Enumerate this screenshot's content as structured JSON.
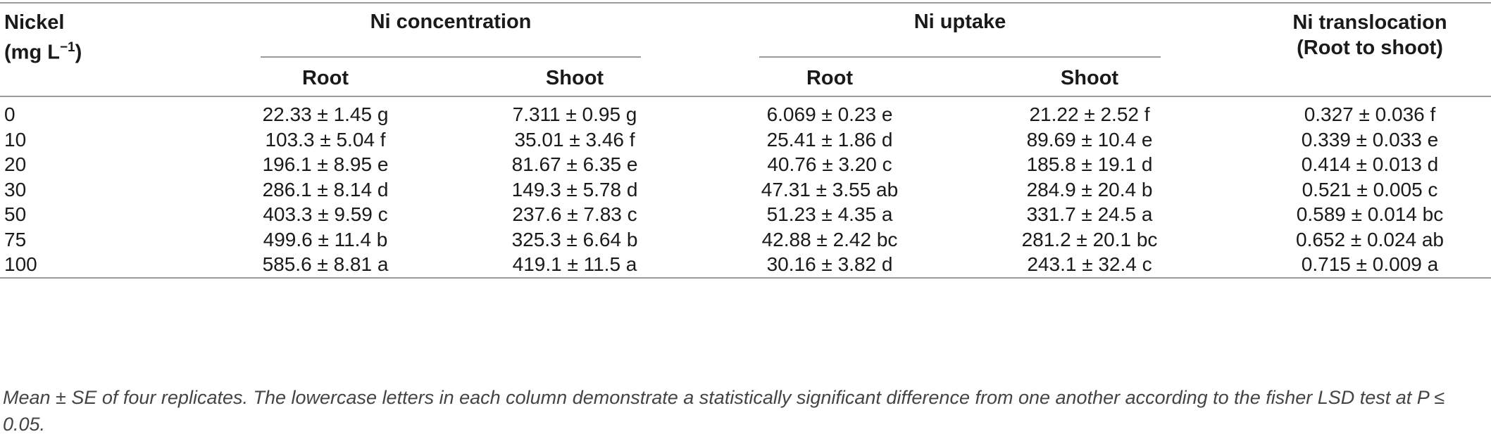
{
  "table": {
    "headers": {
      "nickel_line1": "Nickel",
      "nickel_line2": "(mg L",
      "nickel_sup": "−1",
      "nickel_close": ")",
      "concentration": "Ni concentration",
      "uptake": "Ni uptake",
      "translocation_line1": "Ni translocation",
      "translocation_line2": "(Root to shoot)",
      "conc_root": "Root",
      "conc_shoot": "Shoot",
      "uptake_root": "Root",
      "uptake_shoot": "Shoot"
    },
    "rows": [
      {
        "nickel": "0",
        "conc_root": "22.33 ± 1.45 g",
        "conc_shoot": "7.311 ± 0.95 g",
        "uptake_root": "6.069 ± 0.23 e",
        "uptake_shoot": "21.22 ± 2.52 f",
        "translocation": "0.327 ± 0.036 f"
      },
      {
        "nickel": "10",
        "conc_root": "103.3 ± 5.04 f",
        "conc_shoot": "35.01 ± 3.46 f",
        "uptake_root": "25.41 ± 1.86 d",
        "uptake_shoot": "89.69 ± 10.4 e",
        "translocation": "0.339 ± 0.033 e"
      },
      {
        "nickel": "20",
        "conc_root": "196.1 ± 8.95 e",
        "conc_shoot": "81.67 ± 6.35 e",
        "uptake_root": "40.76 ± 3.20 c",
        "uptake_shoot": "185.8 ± 19.1 d",
        "translocation": "0.414 ± 0.013 d"
      },
      {
        "nickel": "30",
        "conc_root": "286.1 ± 8.14 d",
        "conc_shoot": "149.3 ± 5.78 d",
        "uptake_root": "47.31 ± 3.55 ab",
        "uptake_shoot": "284.9 ± 20.4 b",
        "translocation": "0.521 ± 0.005 c"
      },
      {
        "nickel": "50",
        "conc_root": "403.3 ± 9.59 c",
        "conc_shoot": "237.6 ± 7.83 c",
        "uptake_root": "51.23 ± 4.35 a",
        "uptake_shoot": "331.7 ± 24.5 a",
        "translocation": "0.589 ± 0.014 bc"
      },
      {
        "nickel": "75",
        "conc_root": "499.6 ± 11.4 b",
        "conc_shoot": "325.3 ± 6.64 b",
        "uptake_root": "42.88 ± 2.42 bc",
        "uptake_shoot": "281.2 ± 20.1 bc",
        "translocation": "0.652 ± 0.024 ab"
      },
      {
        "nickel": "100",
        "conc_root": "585.6 ± 8.81 a",
        "conc_shoot": "419.1 ± 11.5 a",
        "uptake_root": "30.16 ± 3.82 d",
        "uptake_shoot": "243.1 ± 32.4 c",
        "translocation": "0.715 ± 0.009 a"
      }
    ],
    "footnote": "Mean ± SE of four replicates. The lowercase letters in each column demonstrate a statistically significant difference from one another according to the fisher LSD test at P ≤ 0.05."
  }
}
